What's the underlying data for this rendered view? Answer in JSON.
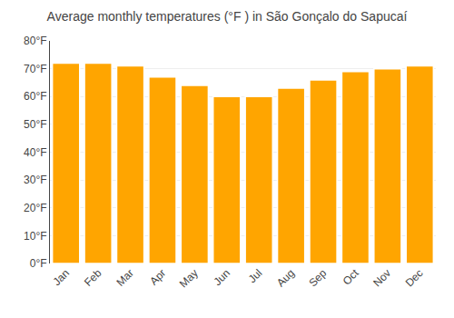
{
  "chart_data": {
    "type": "bar",
    "title": "Average monthly temperatures (°F ) in São Gonçalo do Sapucaí",
    "categories": [
      "Jan",
      "Feb",
      "Mar",
      "Apr",
      "May",
      "Jun",
      "Jul",
      "Aug",
      "Sep",
      "Oct",
      "Nov",
      "Dec"
    ],
    "values": [
      72,
      72,
      71,
      67,
      64,
      60,
      60,
      63,
      66,
      69,
      70,
      71
    ],
    "color": "#FFA500",
    "ylim": [
      0,
      80
    ],
    "yticks": [
      {
        "value": 0,
        "label": "0°F"
      },
      {
        "value": 10,
        "label": "10°F"
      },
      {
        "value": 20,
        "label": "20°F"
      },
      {
        "value": 30,
        "label": "30°F"
      },
      {
        "value": 40,
        "label": "40°F"
      },
      {
        "value": 50,
        "label": "50°F"
      },
      {
        "value": 60,
        "label": "60°F"
      },
      {
        "value": 70,
        "label": "70°F"
      },
      {
        "value": 80,
        "label": "80°F"
      }
    ],
    "grid": true
  }
}
